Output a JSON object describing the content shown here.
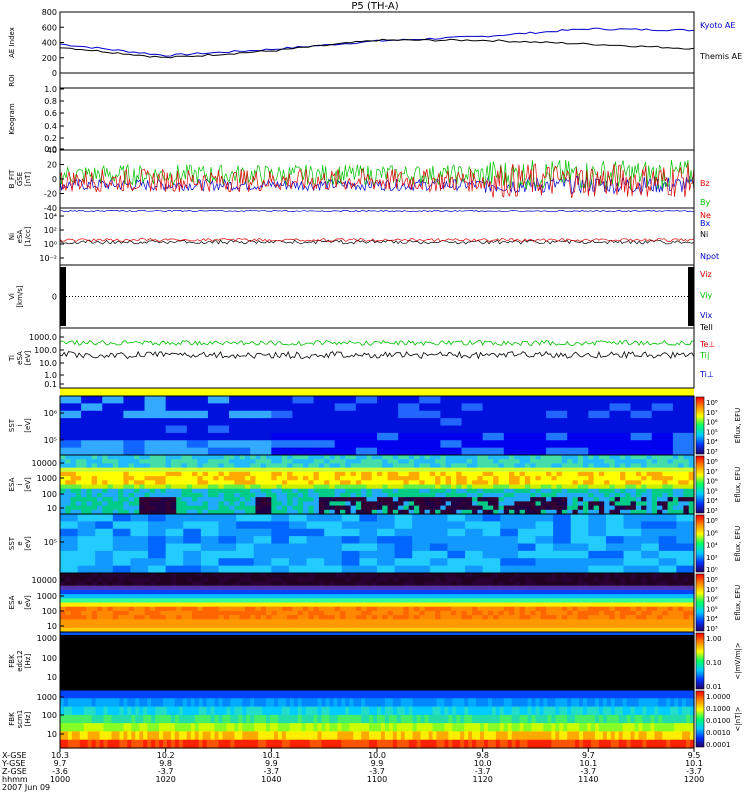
{
  "title": "P5 (TH-A)",
  "colors": {
    "black": "#000000",
    "blue": "#0000cc",
    "red": "#dd0000",
    "green": "#00c000",
    "yellow": "#ffff00"
  },
  "panels": {
    "ae": {
      "ylabel": "AE Index",
      "yticks": [
        "800",
        "600",
        "400",
        "200",
        "0"
      ],
      "legend": [
        "Kyoto AE",
        "Themis AE"
      ]
    },
    "roi": {
      "ylabel": "ROI"
    },
    "keo": {
      "ylabel": "Keogram",
      "yticks": [
        "1.0",
        "0.8",
        "0.6",
        "0.4",
        "0.2",
        "0.0"
      ]
    },
    "bfit": {
      "ylabel": [
        "B_FIT",
        "GSE",
        "[nT]"
      ],
      "yticks": [
        "40",
        "20",
        "0",
        "-20",
        "-40"
      ],
      "legend": [
        "Bz",
        "By",
        "Bx"
      ]
    },
    "ni": {
      "ylabel": [
        "Ni",
        "eSA",
        "[1/cc]"
      ],
      "yticks": [
        "10⁴",
        "10²",
        "10⁰",
        "10⁻²"
      ],
      "legend": [
        "Ne",
        "Ni",
        "Npot"
      ]
    },
    "vi": {
      "ylabel": [
        "Vi",
        "[km/s]"
      ],
      "yticks": [
        "0"
      ],
      "legend": [
        "Viz",
        "Viy",
        "Vix",
        "Tell"
      ]
    },
    "ti": {
      "ylabel": [
        "Ti",
        "eSA",
        "[eV]"
      ],
      "yticks": [
        "1000.0",
        "100.0",
        "10.0",
        "1.0",
        "0.1"
      ],
      "legend": [
        "Te⊥",
        "Ti|",
        "Ti⊥"
      ]
    },
    "sst_i": {
      "ylabel": [
        "SST",
        "i",
        "[eV]"
      ],
      "yticks": [
        "10⁶",
        "10⁵"
      ],
      "colorbar": [
        "10⁸",
        "10⁷",
        "10⁶",
        "10⁵",
        "10⁴",
        "10³"
      ],
      "cb_label": "Eflux, EFU"
    },
    "esa_i": {
      "ylabel": [
        "ESA",
        "i",
        "[eV]"
      ],
      "yticks": [
        "10000",
        "1000",
        "100",
        "10"
      ],
      "colorbar": [
        "10⁸",
        "10⁷",
        "10⁶",
        "10⁵",
        "10⁴",
        "10³"
      ],
      "cb_label": "Eflux, EFU"
    },
    "sst_e": {
      "ylabel": [
        "SST",
        "e",
        "[eV]"
      ],
      "yticks": [
        "10⁵"
      ],
      "colorbar": [
        "10⁸",
        "10⁶",
        "10⁴",
        "10²",
        "10⁰"
      ],
      "cb_label": "Eflux, EFU"
    },
    "esa_e": {
      "ylabel": [
        "ESA",
        "e",
        "[eV]"
      ],
      "yticks": [
        "10000",
        "1000",
        "100",
        "10"
      ],
      "colorbar": [
        "10⁸",
        "10⁷",
        "10⁶",
        "10⁵",
        "10⁴",
        "10³"
      ],
      "cb_label": "Eflux, EFU"
    },
    "fbk1": {
      "ylabel": [
        "FBK",
        "edc12",
        "[Hz]"
      ],
      "yticks": [
        "1000",
        "100",
        "10"
      ],
      "colorbar": [
        "1.00",
        "0.10",
        "0.01"
      ],
      "cb_label": "<|mV/m|>"
    },
    "fbk2": {
      "ylabel": [
        "FBK",
        "scm1",
        "[Hz]"
      ],
      "yticks": [
        "1000",
        "100",
        "10"
      ],
      "colorbar": [
        "1.0000",
        "0.1000",
        "0.0100",
        "0.0010",
        "0.0001"
      ],
      "cb_label": "<|nT|>"
    }
  },
  "xaxis": {
    "row_labels": [
      "X-GSE",
      "Y-GSE",
      "Z-GSE",
      "hhmm",
      "2007 Jun 09"
    ],
    "ticks": [
      {
        "x": "10.3",
        "y": "9.7",
        "z": "-3.6",
        "t": "1000"
      },
      {
        "x": "10.2",
        "y": "9.8",
        "z": "-3.7",
        "t": "1020"
      },
      {
        "x": "10.1",
        "y": "9.9",
        "z": "-3.7",
        "t": "1040"
      },
      {
        "x": "10.0",
        "y": "9.9",
        "z": "-3.7",
        "t": "1100"
      },
      {
        "x": "9.8",
        "y": "10.0",
        "z": "-3.7",
        "t": "1120"
      },
      {
        "x": "9.7",
        "y": "10.1",
        "z": "-3.7",
        "t": "1140"
      },
      {
        "x": "9.5",
        "y": "10.1",
        "z": "-3.7",
        "t": "1200"
      }
    ]
  },
  "chart_data": {
    "type": "line",
    "title": "P5 (TH-A)",
    "xlabel": "hhmm",
    "x": [
      "1000",
      "1020",
      "1040",
      "1100",
      "1120",
      "1140",
      "1200"
    ],
    "series": [
      {
        "name": "Kyoto AE",
        "values": [
          380,
          230,
          310,
          420,
          480,
          580,
          560
        ]
      },
      {
        "name": "Themis AE",
        "values": [
          340,
          200,
          290,
          430,
          430,
          380,
          320
        ]
      }
    ],
    "ylim": [
      0,
      800
    ]
  }
}
